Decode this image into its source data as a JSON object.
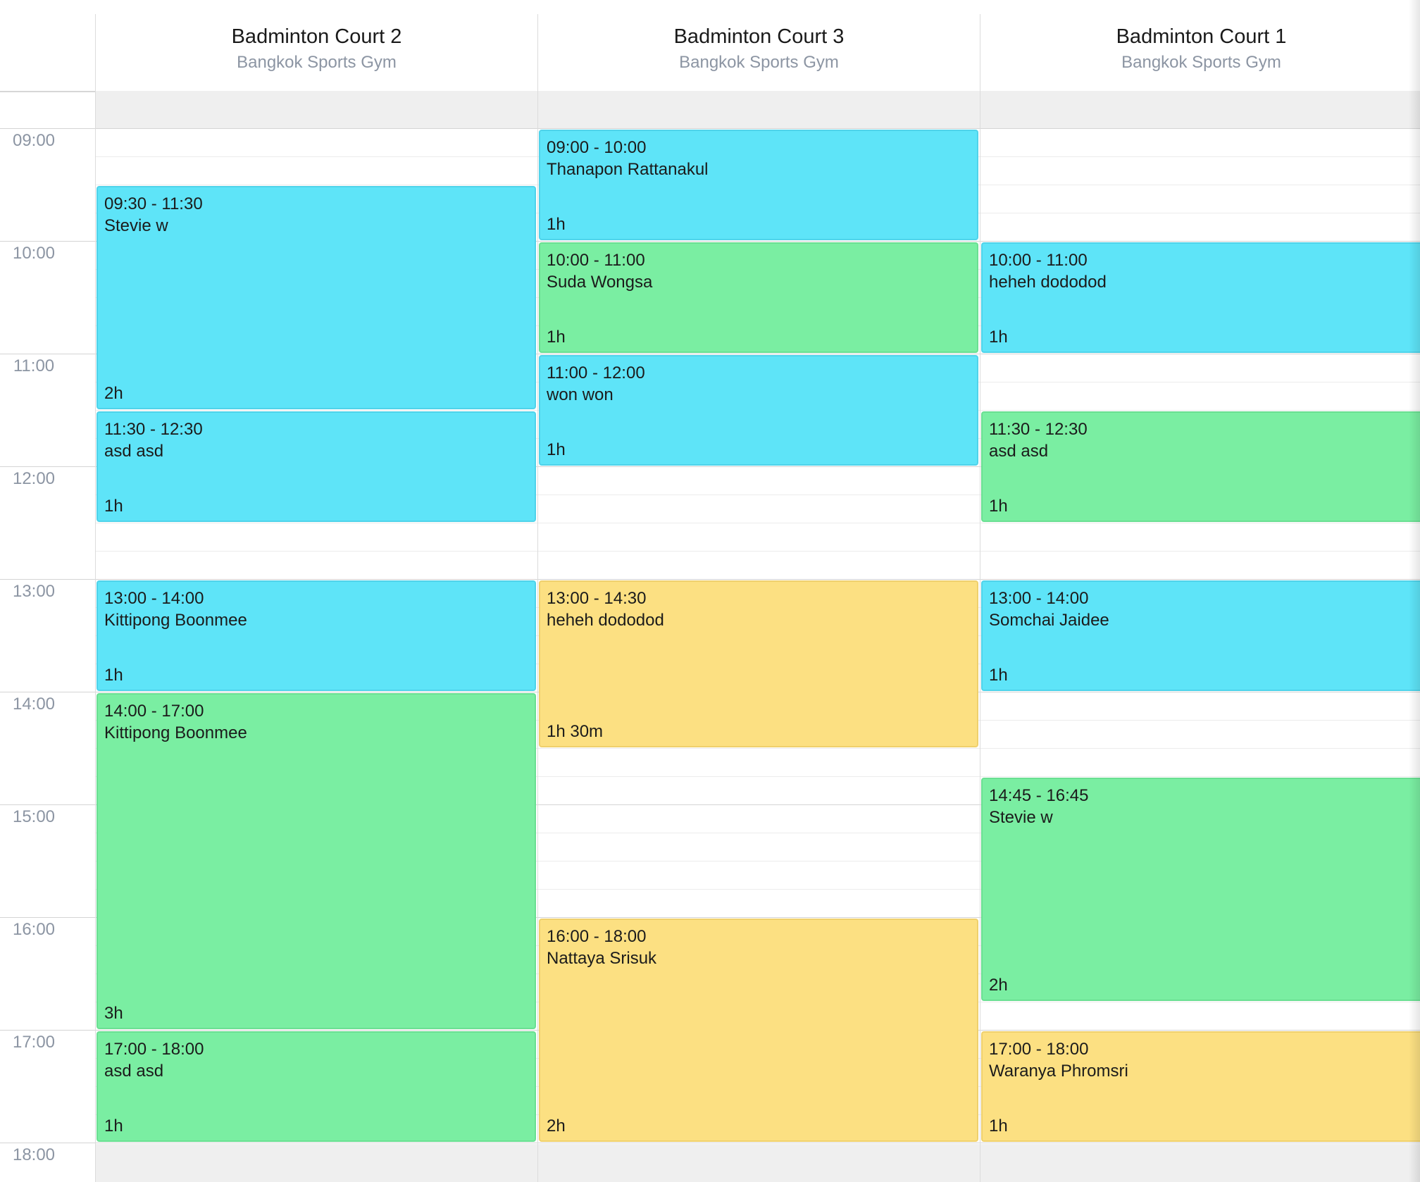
{
  "resources": [
    {
      "title": "Badminton Court 2",
      "subtitle": "Bangkok Sports Gym"
    },
    {
      "title": "Badminton Court 3",
      "subtitle": "Bangkok Sports Gym"
    },
    {
      "title": "Badminton Court 1",
      "subtitle": "Bangkok Sports Gym"
    }
  ],
  "time_slots": [
    "09:00",
    "10:00",
    "11:00",
    "12:00",
    "13:00",
    "14:00",
    "15:00",
    "16:00",
    "17:00",
    "18:00"
  ],
  "colors": {
    "blue": "#5ee4f8",
    "green": "#7aeea2",
    "yellow": "#fce082"
  },
  "events": [
    {
      "resource": 0,
      "time": "09:30 - 11:30",
      "name": "Stevie w",
      "duration": "2h",
      "color": "blue"
    },
    {
      "resource": 0,
      "time": "11:30 - 12:30",
      "name": "asd asd",
      "duration": "1h",
      "color": "blue"
    },
    {
      "resource": 0,
      "time": "13:00 - 14:00",
      "name": "Kittipong Boonmee",
      "duration": "1h",
      "color": "blue"
    },
    {
      "resource": 0,
      "time": "14:00 - 17:00",
      "name": "Kittipong Boonmee",
      "duration": "3h",
      "color": "green"
    },
    {
      "resource": 0,
      "time": "17:00 - 18:00",
      "name": "asd asd",
      "duration": "1h",
      "color": "green"
    },
    {
      "resource": 1,
      "time": "09:00 - 10:00",
      "name": "Thanapon Rattanakul",
      "duration": "1h",
      "color": "blue"
    },
    {
      "resource": 1,
      "time": "10:00 - 11:00",
      "name": "Suda Wongsa",
      "duration": "1h",
      "color": "green"
    },
    {
      "resource": 1,
      "time": "11:00 - 12:00",
      "name": "won won",
      "duration": "1h",
      "color": "blue"
    },
    {
      "resource": 1,
      "time": "13:00 - 14:30",
      "name": "heheh dododod",
      "duration": "1h 30m",
      "color": "yellow"
    },
    {
      "resource": 1,
      "time": "16:00 - 18:00",
      "name": "Nattaya Srisuk",
      "duration": "2h",
      "color": "yellow"
    },
    {
      "resource": 2,
      "time": "10:00 - 11:00",
      "name": "heheh dododod",
      "duration": "1h",
      "color": "blue"
    },
    {
      "resource": 2,
      "time": "11:30 - 12:30",
      "name": "asd asd",
      "duration": "1h",
      "color": "green"
    },
    {
      "resource": 2,
      "time": "13:00 - 14:00",
      "name": "Somchai Jaidee",
      "duration": "1h",
      "color": "blue"
    },
    {
      "resource": 2,
      "time": "14:45 - 16:45",
      "name": "Stevie w",
      "duration": "2h",
      "color": "green"
    },
    {
      "resource": 2,
      "time": "17:00 - 18:00",
      "name": "Waranya Phromsri",
      "duration": "1h",
      "color": "yellow"
    }
  ]
}
